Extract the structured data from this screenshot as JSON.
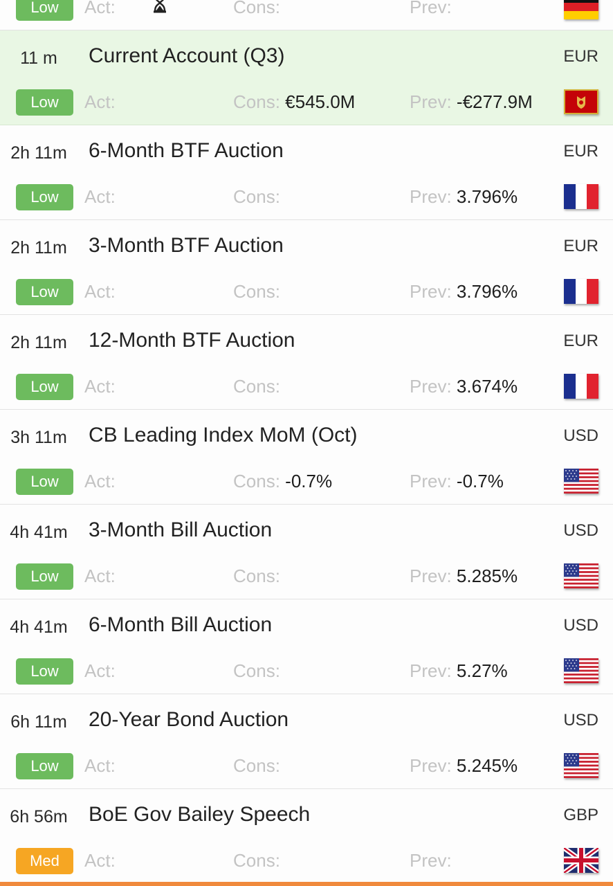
{
  "labels": {
    "act": "Act:",
    "cons": "Cons:",
    "prev": "Prev:"
  },
  "partial_top": {
    "impact": "Low",
    "flag": "germany-flag"
  },
  "events": [
    {
      "time": "11 m",
      "title": "Current Account (Q3)",
      "currency": "EUR",
      "impact": "Low",
      "actual": "",
      "consensus": "€545.0M",
      "previous": "-€277.9M",
      "flag": "montenegro-flag"
    },
    {
      "time": "2h 11m",
      "title": "6-Month BTF Auction",
      "currency": "EUR",
      "impact": "Low",
      "actual": "",
      "consensus": "",
      "previous": "3.796%",
      "flag": "france-flag"
    },
    {
      "time": "2h 11m",
      "title": "3-Month BTF Auction",
      "currency": "EUR",
      "impact": "Low",
      "actual": "",
      "consensus": "",
      "previous": "3.796%",
      "flag": "france-flag"
    },
    {
      "time": "2h 11m",
      "title": "12-Month BTF Auction",
      "currency": "EUR",
      "impact": "Low",
      "actual": "",
      "consensus": "",
      "previous": "3.674%",
      "flag": "france-flag"
    },
    {
      "time": "3h 11m",
      "title": "CB Leading Index MoM (Oct)",
      "currency": "USD",
      "impact": "Low",
      "actual": "",
      "consensus": "-0.7%",
      "previous": "-0.7%",
      "flag": "usa-flag"
    },
    {
      "time": "4h 41m",
      "title": "3-Month Bill Auction",
      "currency": "USD",
      "impact": "Low",
      "actual": "",
      "consensus": "",
      "previous": "5.285%",
      "flag": "usa-flag"
    },
    {
      "time": "4h 41m",
      "title": "6-Month Bill Auction",
      "currency": "USD",
      "impact": "Low",
      "actual": "",
      "consensus": "",
      "previous": "5.27%",
      "flag": "usa-flag"
    },
    {
      "time": "6h 11m",
      "title": "20-Year Bond Auction",
      "currency": "USD",
      "impact": "Low",
      "actual": "",
      "consensus": "",
      "previous": "5.245%",
      "flag": "usa-flag"
    },
    {
      "time": "6h 56m",
      "title": "BoE Gov Bailey Speech",
      "currency": "GBP",
      "impact": "Med",
      "actual": "",
      "consensus": "",
      "previous": "",
      "flag": "uk-flag"
    }
  ],
  "colors": {
    "low": "#6dbb5e",
    "med": "#f6a623",
    "highlight": "#e9f7e4",
    "accent": "#f08a3c"
  }
}
